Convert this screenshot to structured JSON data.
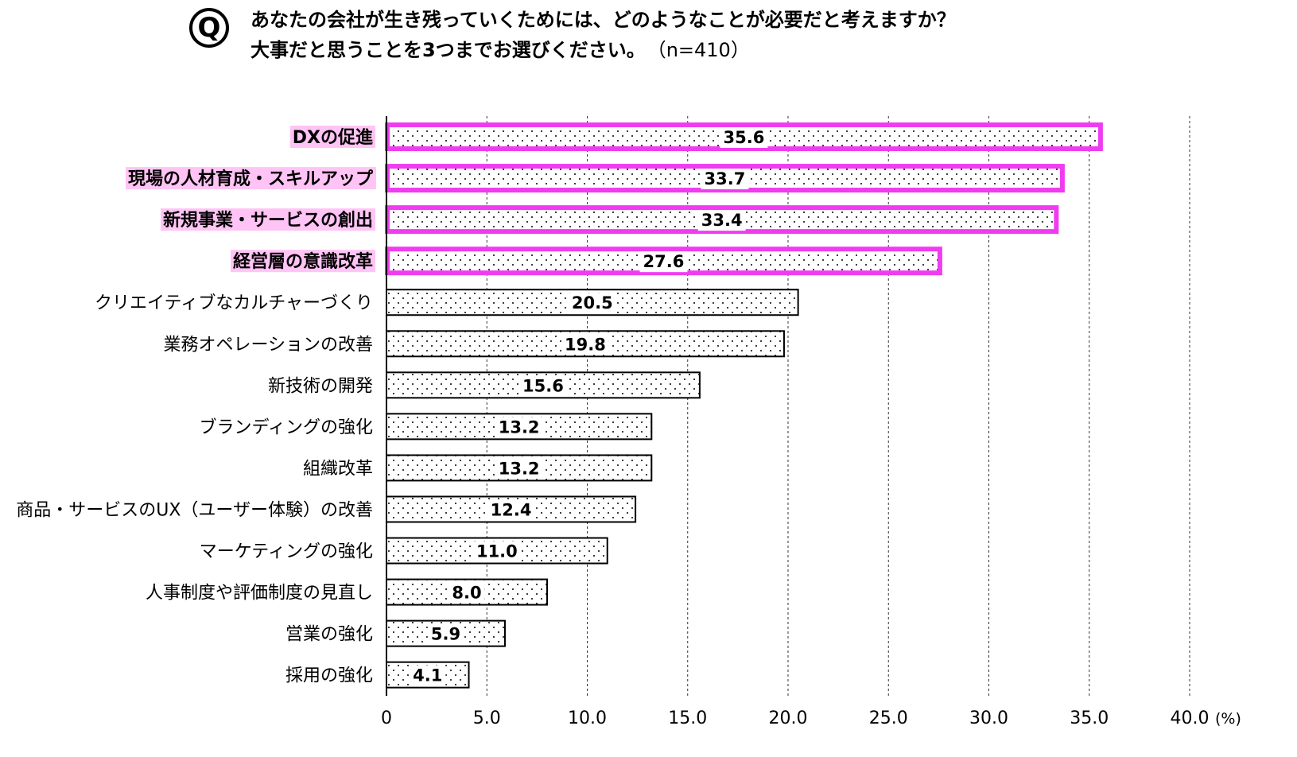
{
  "question": {
    "badge": "Q",
    "line1": "あなたの会社が生き残っていくためには、どのようなことが必要だと考えますか？",
    "line2": "大事だと思うことを3つまでお選びください。",
    "n_label": "（n=410）"
  },
  "chart_data": {
    "type": "bar",
    "orientation": "horizontal",
    "categories": [
      "DXの促進",
      "現場の人材育成・スキルアップ",
      "新規事業・サービスの創出",
      "経営層の意識改革",
      "クリエイティブなカルチャーづくり",
      "業務オペレーションの改善",
      "新技術の開発",
      "ブランディングの強化",
      "組織改革",
      "商品・サービスのUX（ユーザー体験）の改善",
      "マーケティングの強化",
      "人事制度や評価制度の見直し",
      "営業の強化",
      "採用の強化"
    ],
    "values": [
      35.6,
      33.7,
      33.4,
      27.6,
      20.5,
      19.8,
      15.6,
      13.2,
      13.2,
      12.4,
      11.0,
      8.0,
      5.9,
      4.1
    ],
    "value_labels": [
      "35.6",
      "33.7",
      "33.4",
      "27.6",
      "20.5",
      "19.8",
      "15.6",
      "13.2",
      "13.2",
      "12.4",
      "11.0",
      "8.0",
      "5.9",
      "4.1"
    ],
    "highlighted": [
      true,
      true,
      true,
      true,
      false,
      false,
      false,
      false,
      false,
      false,
      false,
      false,
      false,
      false
    ],
    "xlim": [
      0,
      40
    ],
    "xticks": [
      0,
      5,
      10,
      15,
      20,
      25,
      30,
      35,
      40
    ],
    "xtick_labels": [
      "0",
      "5.0",
      "10.0",
      "15.0",
      "20.0",
      "25.0",
      "30.0",
      "35.0",
      "40.0"
    ],
    "unit_label": "(%)",
    "grid": "vertical dashed",
    "colors": {
      "highlight": "#f03cf0",
      "label_highlight_bg": "#ffc4f5",
      "bar_fill": "#ffffff",
      "bar_stroke": "#000000"
    }
  }
}
